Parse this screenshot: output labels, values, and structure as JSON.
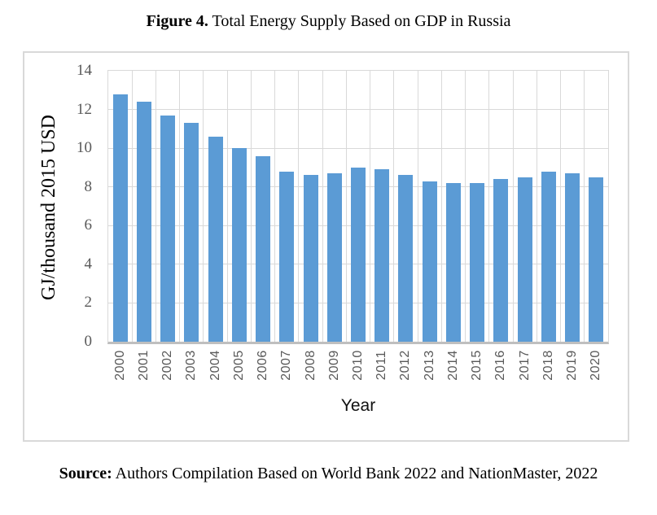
{
  "title": {
    "label": "Figure 4.",
    "text": " Total Energy Supply Based on GDP in Russia"
  },
  "source": {
    "label": "Source:",
    "text": " Authors Compilation Based on World Bank 2022 and NationMaster, 2022"
  },
  "chart_data": {
    "type": "bar",
    "title": "Figure 4. Total Energy Supply Based on GDP in Russia",
    "categories": [
      "2000",
      "2001",
      "2002",
      "2003",
      "2004",
      "2005",
      "2006",
      "2007",
      "2008",
      "2009",
      "2010",
      "2011",
      "2012",
      "2013",
      "2014",
      "2015",
      "2016",
      "2017",
      "2018",
      "2019",
      "2020"
    ],
    "values": [
      12.8,
      12.4,
      11.7,
      11.3,
      10.6,
      10.0,
      9.6,
      8.8,
      8.6,
      8.7,
      9.0,
      8.9,
      8.6,
      8.3,
      8.2,
      8.2,
      8.4,
      8.5,
      8.8,
      8.7,
      8.5
    ],
    "xlabel": "Year",
    "ylabel": "GJ/thousand 2015 USD",
    "ylim": [
      0,
      14
    ],
    "ytick_step": 2,
    "yticks": [
      0,
      2,
      4,
      6,
      8,
      10,
      12,
      14
    ],
    "grid": true,
    "legend": false,
    "bar_color": "#5B9BD5",
    "gridline_color": "#D9D9D9",
    "axis_line_color": "#BFBFBF",
    "tick_label_color": "#595959"
  }
}
